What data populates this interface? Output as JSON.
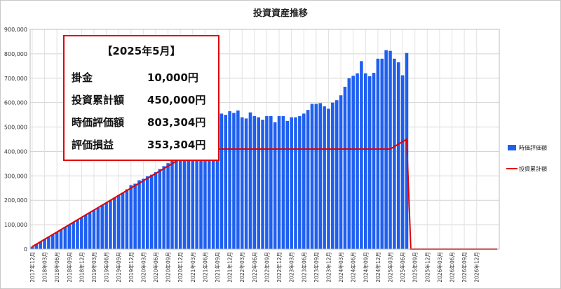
{
  "chart_data": {
    "type": "bar",
    "title": "投資資産推移",
    "ylim": [
      0,
      900000
    ],
    "yticks": [
      "0",
      "100,000",
      "200,000",
      "300,000",
      "400,000",
      "500,000",
      "600,000",
      "700,000",
      "800,000",
      "900,000"
    ],
    "xticks": [
      "2017年12月",
      "2018年03月",
      "2018年06月",
      "2018年09月",
      "2018年12月",
      "2019年03月",
      "2019年06月",
      "2019年09月",
      "2019年12月",
      "2020年03月",
      "2020年06月",
      "2020年09月",
      "2020年12月",
      "2021年03月",
      "2021年06月",
      "2021年09月",
      "2021年12月",
      "2022年03月",
      "2022年06月",
      "2022年09月",
      "2022年12月",
      "2023年03月",
      "2023年06月",
      "2023年09月",
      "2023年12月",
      "2024年03月",
      "2024年06月",
      "2024年09月",
      "2024年12月",
      "2025年03月",
      "2025年06月",
      "2025年09月",
      "2025年12月",
      "2026年03月",
      "2026年06月",
      "2026年09月",
      "2026年12月"
    ],
    "series": [
      {
        "name": "時価評価額",
        "kind": "bar",
        "color": "#1f5ff0",
        "values": [
          10000,
          20000,
          30000,
          40000,
          50000,
          60000,
          70000,
          80000,
          90000,
          100000,
          110000,
          120000,
          130000,
          140000,
          150000,
          160000,
          170000,
          180000,
          190000,
          200000,
          210000,
          220000,
          230000,
          245000,
          262000,
          268000,
          282000,
          288000,
          298000,
          305000,
          315000,
          328000,
          340000,
          352000,
          362000,
          372000,
          380000,
          388000,
          395000,
          402000,
          412000,
          425000,
          440000,
          455000,
          470000,
          545000,
          555000,
          550000,
          565000,
          558000,
          568000,
          540000,
          535000,
          560000,
          545000,
          540000,
          530000,
          545000,
          545000,
          520000,
          545000,
          545000,
          525000,
          540000,
          540000,
          545000,
          555000,
          570000,
          595000,
          595000,
          598000,
          585000,
          575000,
          600000,
          610000,
          630000,
          665000,
          700000,
          710000,
          720000,
          770000,
          720000,
          708000,
          722000,
          780000,
          780000,
          815000,
          812000,
          780000,
          765000,
          712000,
          803304,
          0,
          0,
          0,
          0,
          0,
          0,
          0,
          0,
          0,
          0,
          0,
          0,
          0,
          0,
          0,
          0,
          0,
          0,
          0,
          0,
          0,
          0
        ]
      },
      {
        "name": "投資累計額",
        "kind": "line",
        "color": "#e00000",
        "values": [
          10000,
          20000,
          30000,
          40000,
          50000,
          60000,
          70000,
          80000,
          90000,
          100000,
          110000,
          120000,
          130000,
          140000,
          150000,
          160000,
          170000,
          180000,
          190000,
          200000,
          210000,
          220000,
          230000,
          240000,
          250000,
          260000,
          270000,
          280000,
          290000,
          300000,
          310000,
          320000,
          330000,
          340000,
          350000,
          360000,
          370000,
          380000,
          390000,
          400000,
          410000,
          410000,
          410000,
          410000,
          410000,
          410000,
          410000,
          410000,
          410000,
          410000,
          410000,
          410000,
          410000,
          410000,
          410000,
          410000,
          410000,
          410000,
          410000,
          410000,
          410000,
          410000,
          410000,
          410000,
          410000,
          410000,
          410000,
          410000,
          410000,
          410000,
          410000,
          410000,
          410000,
          410000,
          410000,
          410000,
          410000,
          410000,
          410000,
          410000,
          410000,
          410000,
          410000,
          410000,
          410000,
          410000,
          410000,
          410000,
          420000,
          430000,
          440000,
          450000,
          0,
          0,
          0,
          0,
          0,
          0,
          0,
          0,
          0,
          0,
          0,
          0,
          0,
          0,
          0,
          0,
          0,
          0,
          0,
          0,
          0,
          0
        ]
      }
    ],
    "legend_placement": "right"
  },
  "info_box": {
    "period": "【2025年5月】",
    "rows": [
      {
        "label": "掛金",
        "value": "10,000円"
      },
      {
        "label": "投資累計額",
        "value": "450,000円"
      },
      {
        "label": "時価評価額",
        "value": "803,304円"
      },
      {
        "label": "評価損益",
        "value": "353,304円"
      }
    ],
    "border_color": "#e00000"
  }
}
